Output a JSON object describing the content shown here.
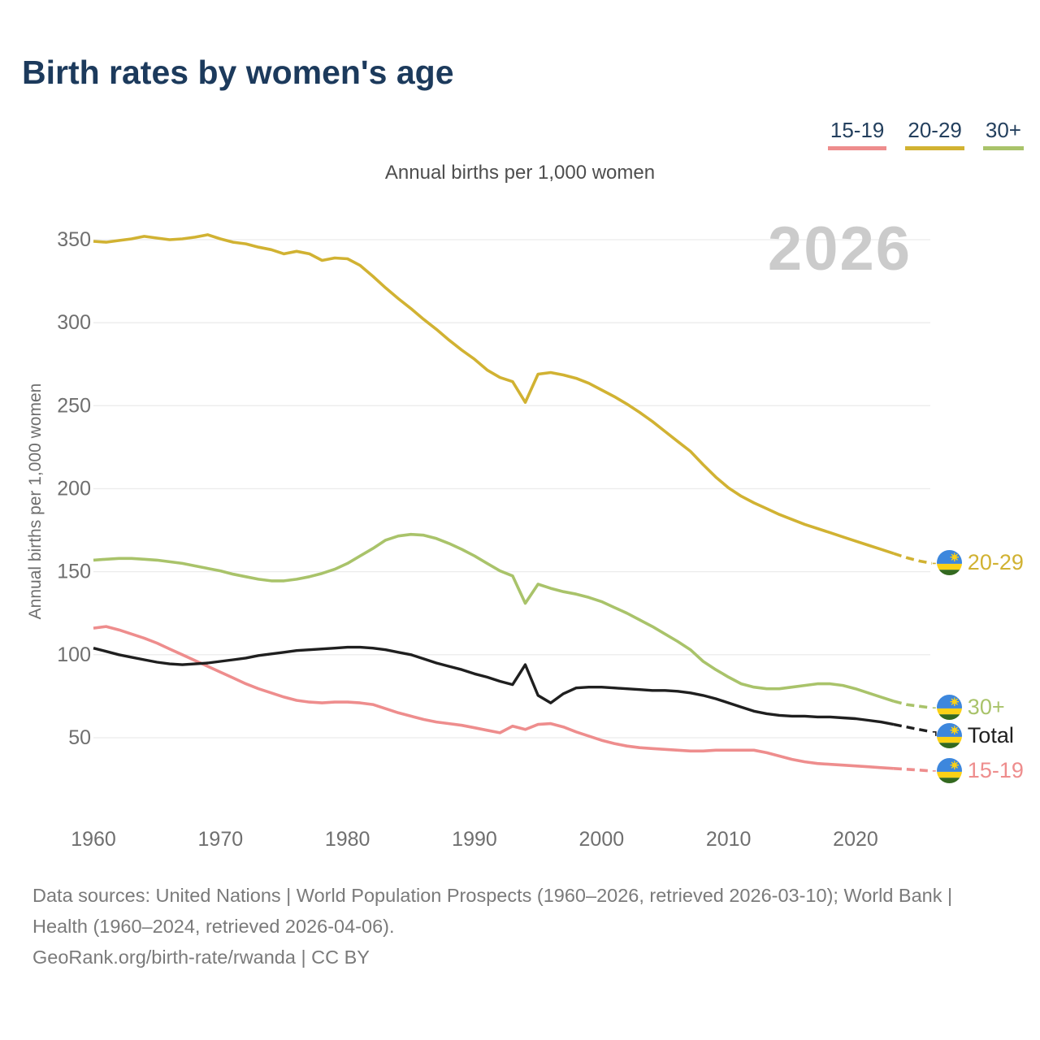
{
  "header": {
    "title": "Birth rates by women's age"
  },
  "legend": {
    "items": [
      {
        "id": "15-19",
        "label": "15-19",
        "color": "#ee8d8d"
      },
      {
        "id": "20-29",
        "label": "20-29",
        "color": "#d1b232"
      },
      {
        "id": "30plus",
        "label": "30+",
        "color": "#a9c36a"
      }
    ]
  },
  "chart": {
    "subtitle": "Annual births per 1,000 women",
    "y_axis_label": "Annual births per 1,000 women",
    "watermark": "2026"
  },
  "chart_data": {
    "type": "line",
    "title": "Birth rates by women's age",
    "subtitle": "Annual births per 1,000 women",
    "ylabel": "Annual births per 1,000 women",
    "xlim": [
      1960,
      2026
    ],
    "ylim": [
      25,
      360
    ],
    "xticks": [
      1960,
      1970,
      1980,
      1990,
      2000,
      2010,
      2020
    ],
    "yticks": [
      50,
      100,
      150,
      200,
      250,
      300,
      350
    ],
    "grid": "horizontal",
    "legend_position": "top-right",
    "watermark": "2026",
    "projection_dashed_from": 2023,
    "x": [
      1960,
      1961,
      1962,
      1963,
      1964,
      1965,
      1966,
      1967,
      1968,
      1969,
      1970,
      1971,
      1972,
      1973,
      1974,
      1975,
      1976,
      1977,
      1978,
      1979,
      1980,
      1981,
      1982,
      1983,
      1984,
      1985,
      1986,
      1987,
      1988,
      1989,
      1990,
      1991,
      1992,
      1993,
      1994,
      1995,
      1996,
      1997,
      1998,
      1999,
      2000,
      2001,
      2002,
      2003,
      2004,
      2005,
      2006,
      2007,
      2008,
      2009,
      2010,
      2011,
      2012,
      2013,
      2014,
      2015,
      2016,
      2017,
      2018,
      2019,
      2020,
      2021,
      2022,
      2023,
      2024,
      2025,
      2026
    ],
    "series": [
      {
        "name": "20-29",
        "end_label": "20-29",
        "color": "#d1b232",
        "values": [
          349,
          348.5,
          349.5,
          350.5,
          352,
          351,
          350,
          350.5,
          351.5,
          353,
          350.5,
          348.5,
          347.5,
          345.5,
          344,
          341.5,
          343,
          341.5,
          337.5,
          339,
          338.5,
          334.5,
          328,
          321,
          314.5,
          308.5,
          302,
          296,
          289.5,
          283.5,
          278,
          271.5,
          267,
          264.5,
          252,
          269,
          270,
          268.5,
          266.5,
          263.5,
          259.5,
          255.5,
          251,
          246,
          240.5,
          234.5,
          228.5,
          222.5,
          214.5,
          207,
          200.5,
          195.5,
          191.5,
          188,
          184.5,
          181.5,
          178.5,
          176,
          173.5,
          171,
          168.5,
          166,
          163.5,
          161,
          158.5,
          156.5,
          155
        ]
      },
      {
        "name": "30+",
        "end_label": "30+",
        "color": "#a9c36a",
        "values": [
          157,
          157.5,
          158,
          158,
          157.5,
          157,
          156,
          155,
          153.5,
          152,
          150.5,
          148.5,
          147,
          145.5,
          144.5,
          144.5,
          145.5,
          147,
          149,
          151.5,
          155,
          159.5,
          164,
          169,
          171.5,
          172.5,
          172,
          170,
          167,
          163.5,
          159.5,
          155,
          150.5,
          147.5,
          131,
          142.5,
          140,
          138,
          136.5,
          134.5,
          132,
          128.5,
          125,
          121,
          117,
          112.5,
          108,
          103,
          96,
          91,
          86.5,
          82.5,
          80.5,
          79.5,
          79.5,
          80.5,
          81.5,
          82.5,
          82.5,
          81.5,
          79.5,
          77,
          74.5,
          72,
          70,
          69,
          68
        ]
      },
      {
        "name": "15-19",
        "end_label": "15-19",
        "color": "#ee8d8d",
        "values": [
          116,
          117,
          115,
          112.5,
          110,
          107,
          103.5,
          100,
          96.5,
          93,
          89.5,
          86,
          82.5,
          79.5,
          77,
          74.5,
          72.5,
          71.5,
          71,
          71.5,
          71.5,
          71,
          70,
          67.5,
          65,
          63,
          61,
          59.5,
          58.5,
          57.5,
          56,
          54.5,
          53,
          57,
          55,
          58,
          58.5,
          56.5,
          53.5,
          51,
          48.5,
          46.5,
          45,
          44,
          43.5,
          43,
          42.5,
          42,
          42,
          42.5,
          42.5,
          42.5,
          42.5,
          41,
          39,
          37,
          35.5,
          34.5,
          34,
          33.5,
          33,
          32.5,
          32,
          31.5,
          31,
          30.5,
          30
        ]
      },
      {
        "name": "Total",
        "end_label": "Total",
        "color": "#1f1f1f",
        "values": [
          104,
          102,
          100,
          98.5,
          97,
          95.5,
          94.5,
          94,
          94.5,
          95,
          96,
          97,
          98,
          99.5,
          100.5,
          101.5,
          102.5,
          103,
          103.5,
          104,
          104.5,
          104.5,
          104,
          103,
          101.5,
          100,
          97.5,
          95,
          93,
          91,
          88.5,
          86.5,
          84,
          82,
          94,
          75.5,
          71,
          76.5,
          80,
          80.5,
          80.5,
          80,
          79.5,
          79,
          78.5,
          78.5,
          78,
          77,
          75.5,
          73.5,
          71,
          68.5,
          66,
          64.5,
          63.5,
          63,
          63,
          62.5,
          62.5,
          62,
          61.5,
          60.5,
          59.5,
          58,
          56.5,
          55,
          53.5
        ]
      }
    ],
    "flag": {
      "name": "rwanda-flag",
      "blue": "#3d87dd",
      "yellow": "#fbd116",
      "green": "#33691f"
    }
  },
  "axis_colors": {
    "tick_label": "#6f6f6f",
    "gridline": "#ececec"
  },
  "footer": {
    "line1": "Data sources: United Nations | World Population Prospects (1960–2026, retrieved 2026-03-10); World Bank | Health (1960–2024, retrieved 2026-04-06).",
    "line2": "GeoRank.org/birth-rate/rwanda | CC BY"
  }
}
